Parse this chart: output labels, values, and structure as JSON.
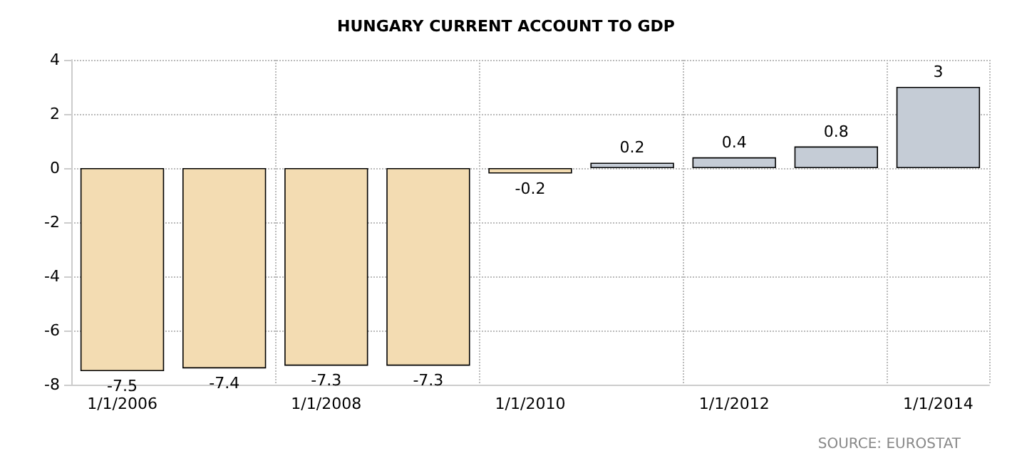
{
  "chart_data": {
    "type": "bar",
    "title": "HUNGARY CURRENT ACCOUNT TO GDP",
    "categories": [
      "1/1/2006",
      null,
      "1/1/2008",
      null,
      "1/1/2010",
      null,
      "1/1/2012",
      null,
      "1/1/2014"
    ],
    "values": [
      -7.5,
      -7.4,
      -7.3,
      -7.3,
      -0.2,
      0.2,
      0.4,
      0.8,
      3
    ],
    "colors": [
      "#f3dcb2",
      "#f3dcb2",
      "#f3dcb2",
      "#f3dcb2",
      "#f3dcb2",
      "#c5ccd6",
      "#c5ccd6",
      "#c5ccd6",
      "#c5ccd6"
    ],
    "ylim": [
      -8,
      4
    ],
    "yticks": [
      -8,
      -6,
      -4,
      -2,
      0,
      2,
      4
    ],
    "grid": true,
    "data_labels": true,
    "annotations": [
      "SOURCE: EUROSTAT"
    ]
  }
}
